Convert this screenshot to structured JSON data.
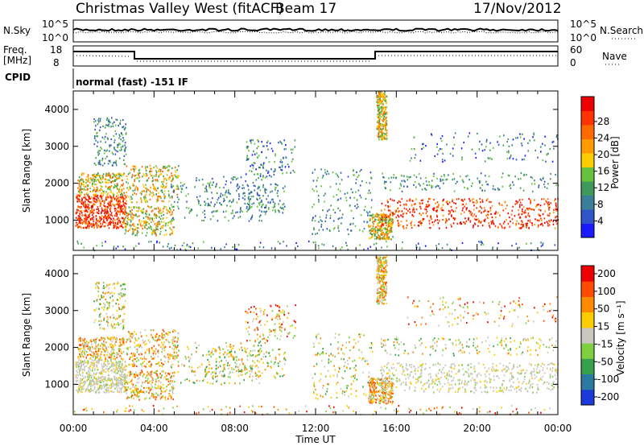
{
  "header": {
    "station": "Christmas Valley West (fitACF)",
    "beam": "Beam 17",
    "date": "17/Nov/2012"
  },
  "top_panels": {
    "nsky_label": "N.Sky",
    "nsky_ticks": [
      "10^5",
      "10^0"
    ],
    "nsearch_label": "N.Search",
    "nsearch_ticks": [
      "10^5",
      "10^0"
    ],
    "freq_label_1": "Freq.",
    "freq_label_2": "[MHz]",
    "freq_ticks": [
      "18",
      "8"
    ],
    "nave_label": "Nave",
    "nave_ticks": [
      "60",
      "0"
    ],
    "cpid_label": "CPID",
    "cpid_text": "normal (fast) -151 IF"
  },
  "chart_data": [
    {
      "type": "heatmap",
      "name": "power",
      "ylabel": "Slant Range [km]",
      "xlabel": "",
      "x_ticks": [
        "00:00",
        "04:00",
        "08:00",
        "12:00",
        "16:00",
        "20:00",
        "00:00"
      ],
      "x_range_hours": [
        0,
        24
      ],
      "y_ticks": [
        "1000",
        "2000",
        "3000",
        "4000"
      ],
      "y_range_km": [
        180,
        4500
      ],
      "colorbar": {
        "label": "Power [dB]",
        "ticks": [
          "4",
          "8",
          "12",
          "16",
          "20",
          "24",
          "28"
        ],
        "colors": [
          "#1a1aff",
          "#2f55c8",
          "#3a7f9a",
          "#3d9a5a",
          "#66c23c",
          "#ffcc00",
          "#ff9a00",
          "#ff6a00",
          "#ff3300",
          "#ee0000"
        ]
      }
    },
    {
      "type": "heatmap",
      "name": "velocity",
      "ylabel": "Slant Range [km]",
      "xlabel": "Time UT",
      "x_ticks": [
        "00:00",
        "04:00",
        "08:00",
        "12:00",
        "16:00",
        "20:00",
        "00:00"
      ],
      "x_range_hours": [
        0,
        24
      ],
      "y_ticks": [
        "1000",
        "2000",
        "3000",
        "4000"
      ],
      "y_range_km": [
        180,
        4500
      ],
      "colorbar": {
        "label": "Velocity [m s⁻¹]",
        "ticks": [
          "200",
          "100",
          "50",
          "15",
          "-15",
          "-50",
          "-100",
          "-200"
        ],
        "colors": [
          "#1a3ad9",
          "#2a7aa0",
          "#36a04a",
          "#7ed040",
          "#c8c8c0",
          "#ffcc00",
          "#ff8c00",
          "#ff4a00",
          "#ee0000"
        ]
      }
    }
  ]
}
